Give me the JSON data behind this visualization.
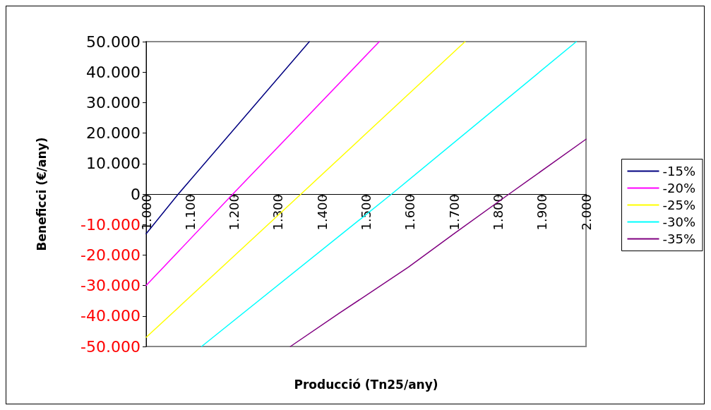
{
  "chart_data": {
    "type": "line",
    "xlabel": "Producció (Tn25/any)",
    "ylabel": "Beneficci (€/any)",
    "xlim": [
      1000,
      2000
    ],
    "ylim": [
      -50000,
      50000
    ],
    "xticks": [
      {
        "value": 1000,
        "label": "1.000"
      },
      {
        "value": 1100,
        "label": "1.100"
      },
      {
        "value": 1200,
        "label": "1.200"
      },
      {
        "value": 1300,
        "label": "1.300"
      },
      {
        "value": 1400,
        "label": "1.400"
      },
      {
        "value": 1500,
        "label": "1.500"
      },
      {
        "value": 1600,
        "label": "1.600"
      },
      {
        "value": 1700,
        "label": "1.700"
      },
      {
        "value": 1800,
        "label": "1.800"
      },
      {
        "value": 1900,
        "label": "1.900"
      },
      {
        "value": 2000,
        "label": "2.000"
      }
    ],
    "yticks": [
      {
        "value": -50000,
        "label": "-50.000"
      },
      {
        "value": -40000,
        "label": "-40.000"
      },
      {
        "value": -30000,
        "label": "-30.000"
      },
      {
        "value": -20000,
        "label": "-20.000"
      },
      {
        "value": -10000,
        "label": "-10.000"
      },
      0,
      {
        "value": 10000,
        "label": "10.000"
      },
      {
        "value": 20000,
        "label": "20.000"
      },
      {
        "value": 30000,
        "label": "30.000"
      },
      {
        "value": 40000,
        "label": "40.000"
      },
      {
        "value": 50000,
        "label": "50.000"
      }
    ],
    "grid": false,
    "legend": "right",
    "marker": "none",
    "line_style": "solid",
    "series": [
      {
        "name": "-15%",
        "color": "#000080",
        "x": [
          1000,
          1073,
          1371
        ],
        "values": [
          -13000,
          0,
          50000
        ]
      },
      {
        "name": "-20%",
        "color": "#ff00ff",
        "x": [
          1000,
          1197,
          1530
        ],
        "values": [
          -30000,
          0,
          50000
        ]
      },
      {
        "name": "-25%",
        "color": "#ffff00",
        "x": [
          1000,
          1352,
          1725
        ],
        "values": [
          -47000,
          0,
          50000
        ]
      },
      {
        "name": "-30%",
        "color": "#00ffff",
        "x": [
          1126,
          1558,
          1978
        ],
        "values": [
          -50000,
          0,
          50000
        ]
      },
      {
        "name": "-35%",
        "color": "#800080",
        "x": [
          1328,
          1440,
          1596,
          1700,
          1825,
          2000
        ],
        "values": [
          -50000,
          -39000,
          -24000,
          -13000,
          0,
          18000
        ]
      }
    ]
  }
}
